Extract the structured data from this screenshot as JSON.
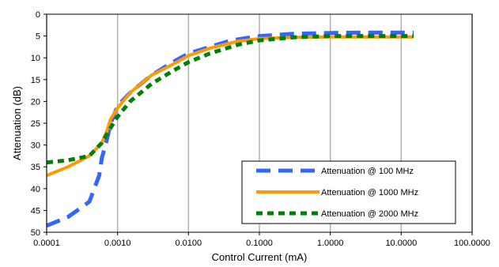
{
  "chart_data": {
    "type": "line",
    "title": "",
    "xlabel": "Control Current (mA)",
    "ylabel": "Attenuation (dB)",
    "x_scale": "log",
    "xlim": [
      0.0001,
      100
    ],
    "ylim": [
      0,
      50
    ],
    "y_inverted": true,
    "x_ticks": [
      "0.0001",
      "0.0010",
      "0.0100",
      "0.1000",
      "1.0000",
      "10.0000",
      "100.0000"
    ],
    "y_ticks": [
      "0",
      "5",
      "10",
      "15",
      "20",
      "25",
      "30",
      "35",
      "40",
      "45",
      "50"
    ],
    "grid": {
      "vertical": true,
      "horizontal": false
    },
    "legend_position": "bottom-right",
    "series": [
      {
        "name": "Attenuation @ 100 MHz",
        "color": "#3366ff",
        "dash": "long-dash",
        "x": [
          0.0001,
          0.0002,
          0.0004,
          0.00055,
          0.0006,
          0.0007,
          0.0008,
          0.001,
          0.0015,
          0.003,
          0.006,
          0.01,
          0.02,
          0.04,
          0.1,
          0.3,
          1,
          3,
          15
        ],
        "y": [
          48.5,
          46.5,
          43,
          37,
          33,
          29,
          25,
          21,
          18,
          14,
          11,
          9,
          7.5,
          6,
          5,
          4.5,
          4.3,
          4.2,
          4.2
        ]
      },
      {
        "name": "Attenuation @ 1000 MHz",
        "color": "#ff9900",
        "dash": "solid",
        "x": [
          0.0001,
          0.0002,
          0.0004,
          0.0006,
          0.0007,
          0.0008,
          0.001,
          0.0015,
          0.003,
          0.006,
          0.01,
          0.02,
          0.05,
          0.1,
          0.3,
          1,
          3,
          15
        ],
        "y": [
          37,
          35,
          32.5,
          29.5,
          27,
          24,
          21.5,
          18,
          14,
          11.5,
          9.5,
          7.8,
          6.2,
          5.6,
          5.3,
          5.2,
          5.2,
          5.2
        ]
      },
      {
        "name": "Attenuation @ 2000 MHz",
        "color": "#008000",
        "dash": "dotted",
        "x": [
          0.0001,
          0.0002,
          0.0004,
          0.0006,
          0.0008,
          0.001,
          0.0015,
          0.003,
          0.006,
          0.01,
          0.02,
          0.05,
          0.1,
          0.3,
          1,
          3,
          15
        ],
        "y": [
          34,
          33.5,
          32.5,
          29.5,
          26,
          23.5,
          20,
          16,
          13,
          11,
          9,
          7,
          6,
          5.3,
          5,
          5,
          5
        ]
      }
    ]
  }
}
